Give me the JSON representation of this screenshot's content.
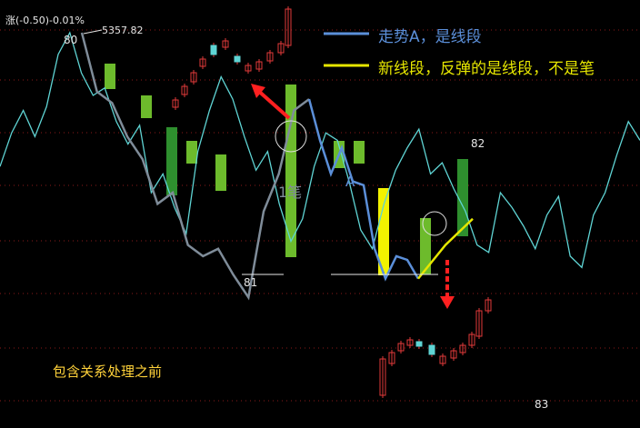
{
  "header": {
    "symbol": "涨",
    "change": "(-0.50)-0.01%"
  },
  "peak_labels": {
    "p80": "80",
    "p80_value": "5357.82",
    "p81": "81",
    "p82": "82",
    "p83": "83"
  },
  "legend": [
    {
      "text": "走势A，是线段",
      "color": "#5b8fd9"
    },
    {
      "text": "新线段，反弹的是线段，不是笔",
      "color": "#e6e600"
    }
  ],
  "annotations": {
    "bi": "1笔",
    "a": "A",
    "note": "包含关系处理之前"
  },
  "colors": {
    "up": "#e23a3a",
    "down": "#5fd4d4",
    "green_box": "#6dbb2c",
    "dark_green_box": "#2e8f2e",
    "yellow_box": "#f2f200",
    "grey_line": "#7f8c99",
    "blue_line": "#5b8fd9",
    "yellow_line": "#e6e600",
    "arrow": "#ff2020",
    "grid": "#8b1a1a"
  },
  "chart_data": {
    "type": "line",
    "title": "",
    "xlabel": "",
    "ylabel": "",
    "series": [
      {
        "values": [
          5000,
          5090,
          5150,
          5080,
          5160,
          5300,
          5357.82,
          5250,
          5190,
          5210,
          5120,
          5060,
          5110,
          4930,
          4980,
          4890,
          4820,
          5040,
          5150,
          5240,
          5180,
          5080,
          4990,
          5040,
          4900,
          4800,
          4860,
          5000,
          5090,
          5070,
          4960,
          4830,
          4780,
          4900,
          4990,
          5050,
          5100,
          4980,
          5010,
          4940,
          4880,
          4790,
          4770,
          4930,
          4890,
          4840,
          4780,
          4870,
          4920,
          4760,
          4730,
          4870,
          4930,
          5030,
          5120,
          5070
        ]
      },
      {
        "values": [
          5357.82,
          5200,
          5170,
          5080,
          5020,
          4900,
          4930,
          4790,
          4760,
          4780,
          4710,
          4650,
          4880,
          4980,
          5150,
          5180
        ]
      },
      {
        "values": [
          5180,
          5070,
          4980,
          5050,
          4960,
          4950,
          4780,
          4700,
          4760,
          4750,
          4700
        ]
      },
      {
        "values": [
          4700,
          4790,
          4860
        ]
      }
    ]
  }
}
